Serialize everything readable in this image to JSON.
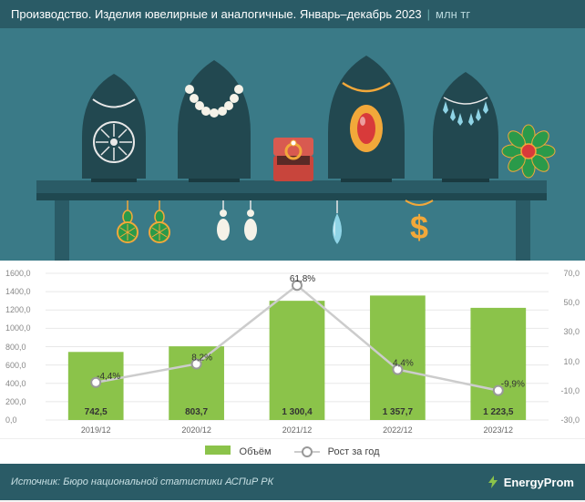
{
  "header": {
    "title": "Производство. Изделия ювелирные и аналогичные. Январь–декабрь 2023",
    "unit": "млн тг"
  },
  "illustration": {
    "background_color": "#3a7a87",
    "table_color": "#2a5b66",
    "table_shadow": "#1f4850",
    "bust_color": "#224850",
    "jewelry_gold": "#f2a83a",
    "jewelry_silver": "#e8e8e8",
    "jewelry_red": "#d83a3a",
    "jewelry_green": "#2a9a4a",
    "jewelry_light_blue": "#8fd4e6",
    "jewelry_pearl": "#f5f2e8",
    "ring_box_red": "#c8453c"
  },
  "chart": {
    "type": "bar+line",
    "background_color": "#ffffff",
    "bar_color": "#8bc34a",
    "line_color": "#cccccc",
    "marker_border": "#999999",
    "marker_fill": "#ffffff",
    "grid_color": "#e8e8e8",
    "categories": [
      "2019/12",
      "2020/12",
      "2021/12",
      "2022/12",
      "2023/12"
    ],
    "bar_values": [
      742.5,
      803.7,
      1300.4,
      1357.7,
      1223.5
    ],
    "bar_labels": [
      "742,5",
      "803,7",
      "1 300,4",
      "1 357,7",
      "1 223,5"
    ],
    "line_values": [
      -4.4,
      8.2,
      61.8,
      4.4,
      -9.9
    ],
    "line_labels": [
      "-4,4%",
      "8,2%",
      "61,8%",
      "4,4%",
      "-9,9%"
    ],
    "y_left": {
      "min": 0,
      "max": 1600,
      "step": 200,
      "ticks": [
        "0,0",
        "200,0",
        "400,0",
        "600,0",
        "800,0",
        "1000,0",
        "1200,0",
        "1400,0",
        "1600,0"
      ]
    },
    "y_right": {
      "min": -30,
      "max": 70,
      "step": 20,
      "ticks": [
        "-30,0",
        "-10,0",
        "10,0",
        "30,0",
        "50,0",
        "70,0"
      ]
    },
    "bar_width_ratio": 0.55,
    "legend": {
      "bar_label": "Объём",
      "line_label": "Рост за год"
    }
  },
  "footer": {
    "source": "Источник: Бюро национальной статистики АСПиР РК",
    "logo_text": "EnergyProm"
  }
}
